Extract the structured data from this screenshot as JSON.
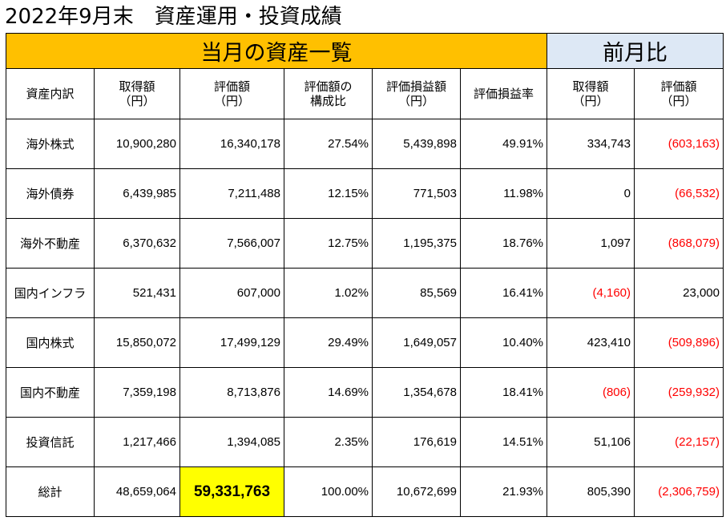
{
  "title": "2022年9月末　資産運用・投資成績",
  "bands": {
    "current": "当月の資産一覧",
    "previous": "前月比"
  },
  "headers": [
    [
      "資産内訳"
    ],
    [
      "取得額",
      "（円）"
    ],
    [
      "評価額",
      "（円）"
    ],
    [
      "評価額の",
      "構成比"
    ],
    [
      "評価損益額",
      "（円）"
    ],
    [
      "評価損益率"
    ],
    [
      "取得額",
      "（円）"
    ],
    [
      "評価額",
      "（円）"
    ]
  ],
  "rows": [
    [
      "海外株式",
      "10,900,280",
      "16,340,178",
      "27.54%",
      "5,439,898",
      "49.91%",
      "334,743",
      "(603,163)"
    ],
    [
      "海外債券",
      "6,439,985",
      "7,211,488",
      "12.15%",
      "771,503",
      "11.98%",
      "0",
      "(66,532)"
    ],
    [
      "海外不動産",
      "6,370,632",
      "7,566,007",
      "12.75%",
      "1,195,375",
      "18.76%",
      "1,097",
      "(868,079)"
    ],
    [
      "国内インフラ",
      "521,431",
      "607,000",
      "1.02%",
      "85,569",
      "16.41%",
      "(4,160)",
      "23,000"
    ],
    [
      "国内株式",
      "15,850,072",
      "17,499,129",
      "29.49%",
      "1,649,057",
      "10.40%",
      "423,410",
      "(509,896)"
    ],
    [
      "国内不動産",
      "7,359,198",
      "8,713,876",
      "14.69%",
      "1,354,678",
      "18.41%",
      "(806)",
      "(259,932)"
    ],
    [
      "投資信託",
      "1,217,466",
      "1,394,085",
      "2.35%",
      "176,619",
      "14.51%",
      "51,106",
      "(22,157)"
    ],
    [
      "総計",
      "48,659,064",
      "59,331,763",
      "100.00%",
      "10,672,699",
      "21.93%",
      "805,390",
      "(2,306,759)"
    ]
  ],
  "colors": {
    "band_current": "#ffc000",
    "band_previous": "#dde8f5",
    "highlight": "#ffff00",
    "negative": "#ff0000"
  }
}
